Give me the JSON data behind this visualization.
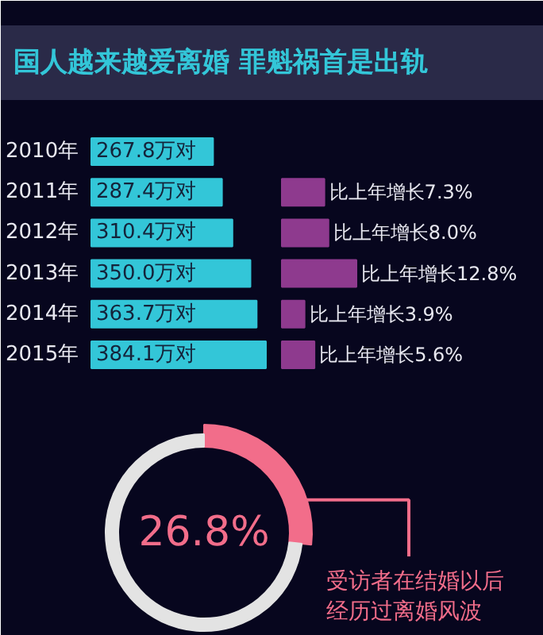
{
  "chart_data": [
    {
      "type": "bar",
      "title": "国人越来越爱离婚 罪魁祸首是出轨",
      "orientation": "horizontal",
      "categories": [
        "2010年",
        "2011年",
        "2012年",
        "2013年",
        "2014年",
        "2015年"
      ],
      "values": [
        267.8,
        287.4,
        310.4,
        350.0,
        363.7,
        384.1
      ],
      "color": "#33c6d8",
      "value_labels": [
        "267.8万对",
        "287.4万对",
        "310.4万对",
        "350.0万对",
        "363.7万对",
        "384.1万对"
      ]
    },
    {
      "type": "bar",
      "orientation": "horizontal",
      "categories": [
        null,
        null,
        null,
        null,
        null
      ],
      "values": [
        7.3,
        8.0,
        12.8,
        3.9,
        5.6
      ],
      "color": "#8e3a8e",
      "value_labels": [
        "比上年增长7.3%",
        "比上年增长8.0%",
        "比上年增长12.8%",
        "比上年增长3.9%",
        "比上年增长5.6%"
      ]
    },
    {
      "type": "donut",
      "categories": [
        "受访者在结婚以后经历过离婚风波",
        null
      ],
      "values": [
        26.8,
        73.2
      ],
      "colors": [
        "#f26d8a",
        "#e3e3e3"
      ],
      "value_labels": [
        "26.8%",
        null
      ]
    }
  ]
}
